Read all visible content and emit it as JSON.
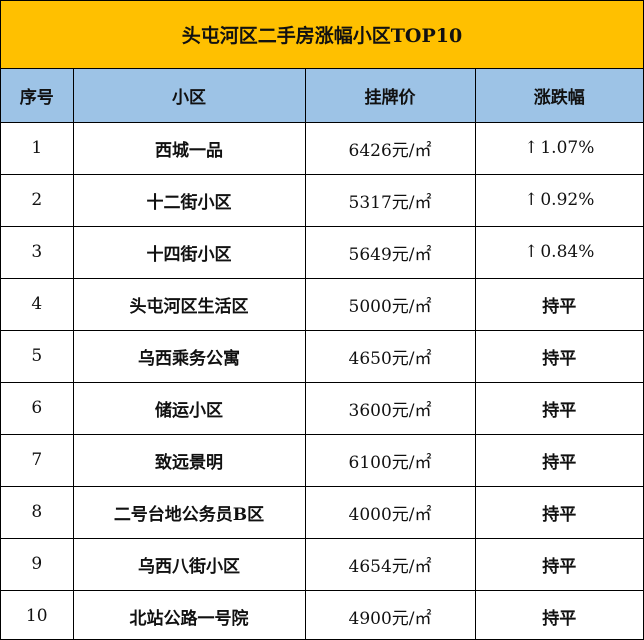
{
  "title": "头屯河区二手房涨幅小区TOP10",
  "headers": [
    "序号",
    "小区",
    "挂牌价",
    "涨跌幅"
  ],
  "unit": "元/㎡",
  "rows": [
    {
      "no": "1",
      "name": "西城一品",
      "price": "6426",
      "change": "1.07%",
      "trend": "up",
      "arrow": "↑"
    },
    {
      "no": "2",
      "name": "十二街小区",
      "price": "5317",
      "change": "0.92%",
      "trend": "up",
      "arrow": "↑"
    },
    {
      "no": "3",
      "name": "十四街小区",
      "price": "5649",
      "change": "0.84%",
      "trend": "up",
      "arrow": "↑"
    },
    {
      "no": "4",
      "name": "头屯河区生活区",
      "price": "5000",
      "change": "持平",
      "trend": "flat"
    },
    {
      "no": "5",
      "name": "乌西乘务公寓",
      "price": "4650",
      "change": "持平",
      "trend": "flat"
    },
    {
      "no": "6",
      "name": "储运小区",
      "price": "3600",
      "change": "持平",
      "trend": "flat"
    },
    {
      "no": "7",
      "name": "致远景明",
      "price": "6100",
      "change": "持平",
      "trend": "flat"
    },
    {
      "no": "8",
      "name": "二号台地公务员B区",
      "price": "4000",
      "change": "持平",
      "trend": "flat"
    },
    {
      "no": "9",
      "name": "乌西八街小区",
      "price": "4654",
      "change": "持平",
      "trend": "flat"
    },
    {
      "no": "10",
      "name": "北站公路一号院",
      "price": "4900",
      "change": "持平",
      "trend": "flat"
    }
  ],
  "colors": {
    "title_bg": "#ffc000",
    "header_bg": "#9dc3e6"
  }
}
